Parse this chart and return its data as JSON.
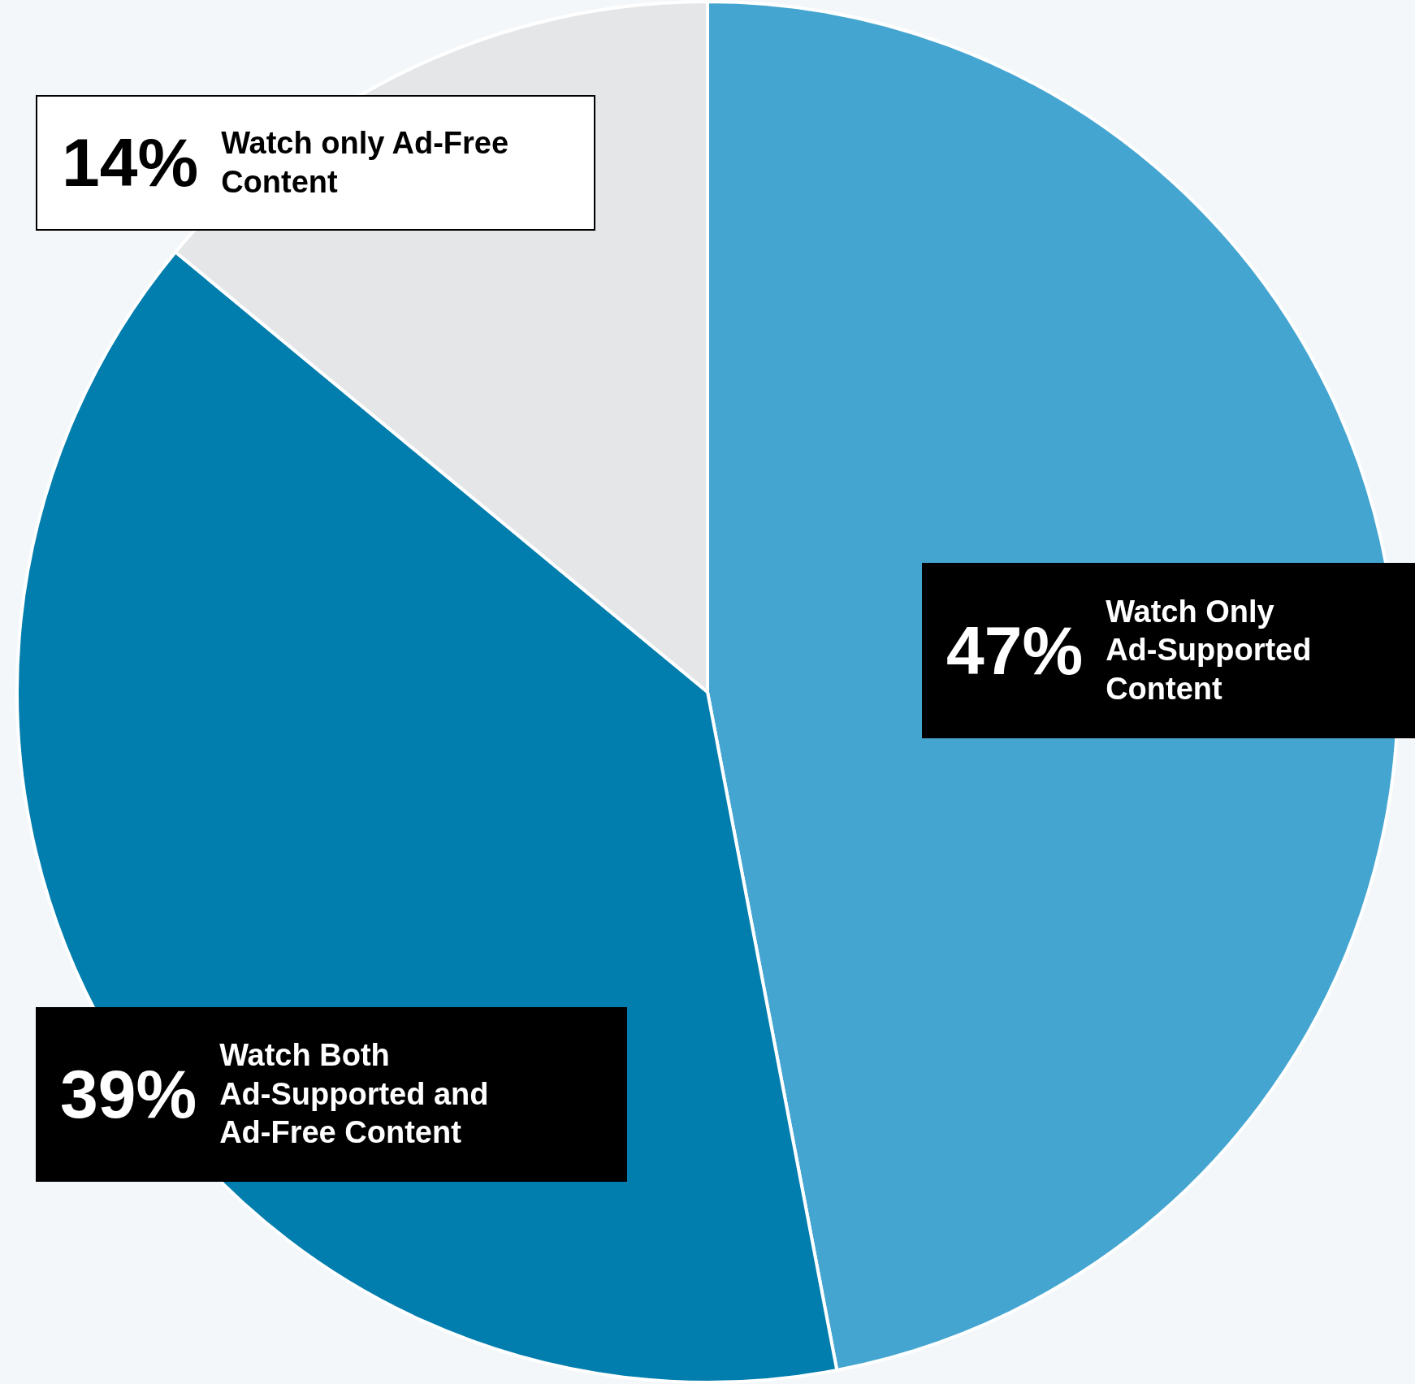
{
  "chart_data": {
    "type": "pie",
    "categories": [
      "Watch Only Ad-Supported Content",
      "Watch Both Ad-Supported and Ad-Free Content",
      "Watch only Ad-Free Content"
    ],
    "values": [
      47,
      39,
      14
    ],
    "colors": [
      "#45a5d1",
      "#017dae",
      "#e5e6e8"
    ],
    "value_labels": [
      "47%",
      "39%",
      "14%"
    ],
    "legend": false
  }
}
